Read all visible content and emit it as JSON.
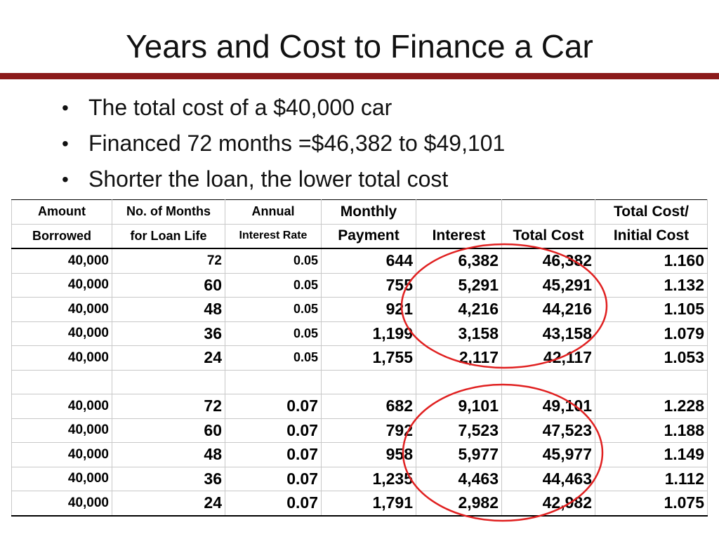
{
  "title": "Years and Cost to Finance a Car",
  "bullets": [
    "The total cost of a $40,000 car",
    "Financed 72 months =$46,382 to $49,101",
    "Shorter the loan, the lower total cost"
  ],
  "table": {
    "header_row1": [
      "Amount",
      "No. of Months",
      "Annual",
      "Monthly",
      "",
      "",
      "Total Cost/"
    ],
    "header_row2": [
      "Borrowed",
      "for Loan Life",
      "Interest Rate",
      "Payment",
      "Interest",
      "Total Cost",
      "Initial Cost"
    ],
    "rows_5pct": [
      [
        "40,000",
        "72",
        "0.05",
        "644",
        "6,382",
        "46,382",
        "1.160"
      ],
      [
        "40,000",
        "60",
        "0.05",
        "755",
        "5,291",
        "45,291",
        "1.132"
      ],
      [
        "40,000",
        "48",
        "0.05",
        "921",
        "4,216",
        "44,216",
        "1.105"
      ],
      [
        "40,000",
        "36",
        "0.05",
        "1,199",
        "3,158",
        "43,158",
        "1.079"
      ],
      [
        "40,000",
        "24",
        "0.05",
        "1,755",
        "2,117",
        "42,117",
        "1.053"
      ]
    ],
    "rows_7pct": [
      [
        "40,000",
        "72",
        "0.07",
        "682",
        "9,101",
        "49,101",
        "1.228"
      ],
      [
        "40,000",
        "60",
        "0.07",
        "792",
        "7,523",
        "47,523",
        "1.188"
      ],
      [
        "40,000",
        "48",
        "0.07",
        "958",
        "5,977",
        "45,977",
        "1.149"
      ],
      [
        "40,000",
        "36",
        "0.07",
        "1,235",
        "4,463",
        "44,463",
        "1.112"
      ],
      [
        "40,000",
        "24",
        "0.07",
        "1,791",
        "2,982",
        "42,982",
        "1.075"
      ]
    ]
  },
  "colors": {
    "rule": "#8b1a1a",
    "annotation_circle": "#e02020"
  }
}
